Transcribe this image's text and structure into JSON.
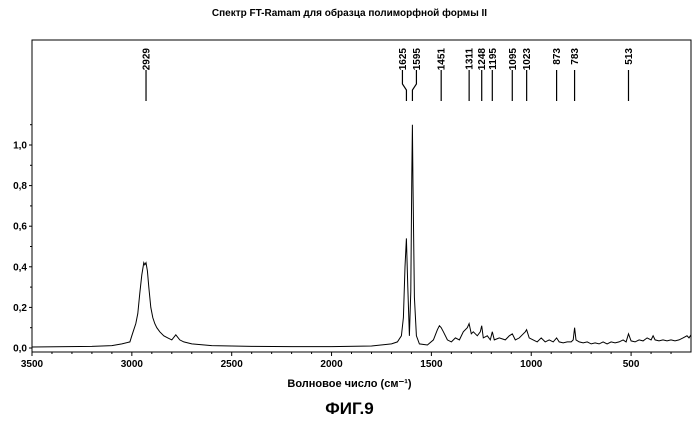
{
  "chart_data": {
    "type": "line",
    "title": "Спектр FT-Ramam для образца полиморфной формы II",
    "xlabel": "Волновое число (см⁻¹)",
    "ylabel": "",
    "xlim": [
      3500,
      200
    ],
    "ylim": [
      0,
      1.2
    ],
    "x_ticks": [
      "3500",
      "3000",
      "2500",
      "2000",
      "1500",
      "1000",
      "500"
    ],
    "y_ticks": [
      "0,0",
      "0,2",
      "0,4",
      "0,6",
      "0,8",
      "1,0"
    ],
    "peak_labels": [
      "2929",
      "1625",
      "1595",
      "1451",
      "1311",
      "1248",
      "1195",
      "1095",
      "1023",
      "873",
      "783",
      "513"
    ],
    "grid": false,
    "series": [
      {
        "x": [
          3500,
          3200,
          3100,
          3050,
          3010,
          3000,
          2990,
          2980,
          2970,
          2960,
          2950,
          2940,
          2935,
          2929,
          2922,
          2915,
          2905,
          2895,
          2885,
          2875,
          2860,
          2840,
          2820,
          2800,
          2780,
          2760,
          2740,
          2700,
          2600,
          2400,
          2200,
          2000,
          1800,
          1700,
          1670,
          1650,
          1640,
          1632,
          1625,
          1618,
          1610,
          1603,
          1598,
          1595,
          1592,
          1585,
          1575,
          1560,
          1520,
          1490,
          1470,
          1460,
          1451,
          1440,
          1420,
          1400,
          1380,
          1360,
          1340,
          1320,
          1311,
          1300,
          1290,
          1270,
          1255,
          1248,
          1240,
          1220,
          1205,
          1195,
          1185,
          1160,
          1130,
          1110,
          1095,
          1080,
          1060,
          1040,
          1030,
          1023,
          1010,
          990,
          970,
          950,
          930,
          910,
          890,
          873,
          860,
          840,
          820,
          800,
          790,
          783,
          776,
          760,
          740,
          720,
          700,
          680,
          660,
          640,
          620,
          600,
          580,
          560,
          540,
          525,
          513,
          500,
          480,
          460,
          440,
          420,
          400,
          390,
          380,
          360,
          340,
          320,
          300,
          280,
          260,
          240,
          220,
          210,
          200
        ],
        "y": [
          0.005,
          0.008,
          0.012,
          0.02,
          0.03,
          0.06,
          0.09,
          0.12,
          0.17,
          0.27,
          0.36,
          0.42,
          0.41,
          0.42,
          0.38,
          0.3,
          0.2,
          0.15,
          0.12,
          0.1,
          0.08,
          0.06,
          0.05,
          0.04,
          0.065,
          0.04,
          0.03,
          0.02,
          0.012,
          0.008,
          0.007,
          0.007,
          0.01,
          0.02,
          0.03,
          0.06,
          0.15,
          0.4,
          0.54,
          0.3,
          0.06,
          0.28,
          0.85,
          1.1,
          0.8,
          0.25,
          0.06,
          0.02,
          0.015,
          0.04,
          0.09,
          0.11,
          0.1,
          0.08,
          0.04,
          0.03,
          0.05,
          0.04,
          0.08,
          0.1,
          0.12,
          0.07,
          0.08,
          0.06,
          0.08,
          0.11,
          0.05,
          0.06,
          0.04,
          0.08,
          0.04,
          0.05,
          0.04,
          0.06,
          0.07,
          0.04,
          0.05,
          0.07,
          0.08,
          0.09,
          0.05,
          0.04,
          0.03,
          0.05,
          0.03,
          0.04,
          0.03,
          0.05,
          0.03,
          0.025,
          0.03,
          0.03,
          0.04,
          0.1,
          0.04,
          0.03,
          0.025,
          0.03,
          0.02,
          0.025,
          0.02,
          0.03,
          0.02,
          0.03,
          0.025,
          0.03,
          0.04,
          0.03,
          0.07,
          0.035,
          0.03,
          0.04,
          0.035,
          0.05,
          0.04,
          0.06,
          0.04,
          0.035,
          0.04,
          0.035,
          0.04,
          0.035,
          0.04,
          0.05,
          0.06,
          0.05,
          0.065
        ]
      }
    ]
  },
  "figure_label": "ФИГ.9"
}
